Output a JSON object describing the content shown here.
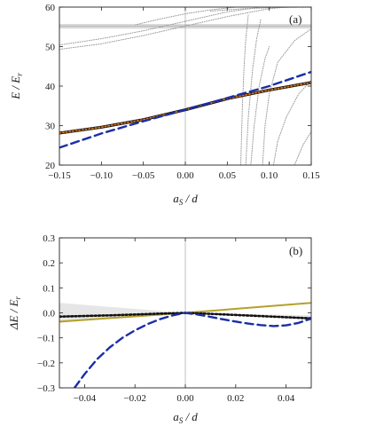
{
  "chart_data": [
    {
      "type": "line",
      "panel_label": "(a)",
      "xlabel": "a_S / d",
      "ylabel": "E / E_r",
      "xlim": [
        -0.15,
        0.15
      ],
      "ylim": [
        20,
        60
      ],
      "xticks": [
        "−0.15",
        "−0.10",
        "−0.05",
        "0.00",
        "0.05",
        "0.10",
        "0.15"
      ],
      "xtick_values": [
        -0.15,
        -0.1,
        -0.05,
        0.0,
        0.05,
        0.1,
        0.15
      ],
      "yticks": [
        "20",
        "30",
        "40",
        "50",
        "60"
      ],
      "ytick_values": [
        20,
        30,
        40,
        50,
        60
      ],
      "colors": {
        "black": "#111111",
        "orange": "#e07a1f",
        "blue": "#1a2ea8",
        "gray": "#9a9a9a",
        "axis": "#222222"
      },
      "series": [
        {
          "style": "solid-black-thick",
          "x": [
            -0.15,
            -0.1,
            -0.05,
            0.0,
            0.05,
            0.1,
            0.15
          ],
          "y": [
            28.1,
            29.6,
            31.5,
            34.0,
            36.8,
            39.0,
            40.9
          ]
        },
        {
          "style": "dotted-orange",
          "x": [
            -0.15,
            -0.1,
            -0.05,
            0.0,
            0.05,
            0.1,
            0.15
          ],
          "y": [
            28.1,
            29.6,
            31.5,
            34.0,
            36.8,
            39.0,
            40.9
          ]
        },
        {
          "style": "dashed-blue",
          "x": [
            -0.15,
            -0.1,
            -0.05,
            0.0,
            0.05,
            0.1,
            0.15
          ],
          "y": [
            24.4,
            28.0,
            31.1,
            34.0,
            37.0,
            40.0,
            43.6
          ]
        },
        {
          "style": "gray-horizontal",
          "x": [
            -0.15,
            0.15
          ],
          "y": [
            54.8,
            54.8
          ]
        },
        {
          "style": "gray-horizontal",
          "x": [
            -0.15,
            0.15
          ],
          "y": [
            55.2,
            55.2
          ]
        },
        {
          "style": "gray-horizontal",
          "x": [
            -0.15,
            0.15
          ],
          "y": [
            55.5,
            55.5
          ]
        },
        {
          "style": "gray-dotted",
          "x": [
            -0.15,
            -0.1,
            -0.05,
            0.0,
            0.05,
            0.1,
            0.12
          ],
          "y": [
            49.3,
            50.7,
            52.8,
            55.2,
            57.6,
            59.6,
            60.0
          ]
        },
        {
          "style": "gray-dotted",
          "x": [
            -0.15,
            -0.1,
            -0.05,
            0.0,
            0.05,
            0.09
          ],
          "y": [
            50.4,
            52.0,
            54.0,
            56.4,
            58.8,
            60.0
          ]
        },
        {
          "style": "gray-dotted",
          "x": [
            -0.06,
            -0.03,
            0.0,
            0.03,
            0.06
          ],
          "y": [
            55.5,
            57.0,
            58.3,
            59.3,
            60.0
          ]
        },
        {
          "style": "gray-dotted",
          "x": [
            0.03,
            0.07,
            0.11,
            0.15
          ],
          "y": [
            59.0,
            59.6,
            59.9,
            60.0
          ]
        },
        {
          "style": "gray-dotted",
          "x": [
            0.092,
            0.095,
            0.1,
            0.11,
            0.13,
            0.15
          ],
          "y": [
            20.0,
            30.0,
            38.0,
            46.0,
            51.5,
            54.5
          ]
        },
        {
          "style": "gray-dotted",
          "x": [
            0.105,
            0.11,
            0.12,
            0.135,
            0.15
          ],
          "y": [
            20.0,
            26.0,
            32.0,
            38.0,
            41.5
          ]
        },
        {
          "style": "gray-dotted",
          "x": [
            0.13,
            0.14,
            0.15
          ],
          "y": [
            20.0,
            25.0,
            28.5
          ]
        },
        {
          "style": "gray-dotted",
          "x": [
            0.066,
            0.068,
            0.07,
            0.072,
            0.075
          ],
          "y": [
            20.0,
            35.0,
            45.0,
            52.0,
            58.0
          ]
        },
        {
          "style": "gray-dotted",
          "x": [
            0.072,
            0.075,
            0.08,
            0.085,
            0.09
          ],
          "y": [
            20.0,
            32.0,
            44.0,
            52.0,
            57.0
          ]
        },
        {
          "style": "gray-dotted",
          "x": [
            0.078,
            0.082,
            0.088,
            0.095,
            0.1
          ],
          "y": [
            20.0,
            30.0,
            40.0,
            47.0,
            50.0
          ]
        }
      ]
    },
    {
      "type": "line",
      "panel_label": "(b)",
      "xlabel": "a_S / d",
      "ylabel": "ΔE / E_r",
      "xlim": [
        -0.05,
        0.05
      ],
      "ylim": [
        -0.3,
        0.3
      ],
      "xticks": [
        "−0.04",
        "−0.02",
        "0.00",
        "0.02",
        "0.04"
      ],
      "xtick_values": [
        -0.04,
        -0.02,
        0.0,
        0.02,
        0.04
      ],
      "yticks": [
        "−0.3",
        "−0.2",
        "−0.1",
        "0.0",
        "0.1",
        "0.2",
        "0.3"
      ],
      "ytick_values": [
        -0.3,
        -0.2,
        -0.1,
        0.0,
        0.1,
        0.2,
        0.3
      ],
      "colors": {
        "black": "#111111",
        "olive": "#b5a02a",
        "blue": "#1a2ea8",
        "band": "#e6e6e6",
        "axis": "#222222"
      },
      "band": {
        "x": [
          -0.05,
          -0.025,
          0.0,
          0.025,
          0.05
        ],
        "upper": [
          0.04,
          0.02,
          0.0,
          -0.005,
          -0.01
        ],
        "lower": [
          -0.04,
          -0.02,
          0.0,
          -0.01,
          -0.03
        ]
      },
      "series": [
        {
          "style": "solid-olive",
          "x": [
            -0.05,
            0.0,
            0.05
          ],
          "y": [
            -0.035,
            0.0,
            0.04
          ]
        },
        {
          "style": "dotted-black",
          "x": [
            -0.05,
            -0.03,
            -0.01,
            0.0,
            0.01,
            0.03,
            0.05
          ],
          "y": [
            -0.015,
            -0.01,
            -0.003,
            0.0,
            -0.004,
            -0.013,
            -0.022
          ]
        },
        {
          "style": "dashed-blue",
          "x": [
            -0.044,
            -0.04,
            -0.035,
            -0.03,
            -0.025,
            -0.02,
            -0.015,
            -0.01,
            -0.005,
            0.0,
            0.005,
            0.01,
            0.015,
            0.02,
            0.025,
            0.03,
            0.035,
            0.04,
            0.045,
            0.05
          ],
          "y": [
            -0.3,
            -0.245,
            -0.185,
            -0.138,
            -0.1,
            -0.07,
            -0.045,
            -0.025,
            -0.01,
            0.0,
            -0.007,
            -0.016,
            -0.026,
            -0.035,
            -0.043,
            -0.049,
            -0.053,
            -0.05,
            -0.04,
            -0.023
          ]
        }
      ]
    }
  ]
}
